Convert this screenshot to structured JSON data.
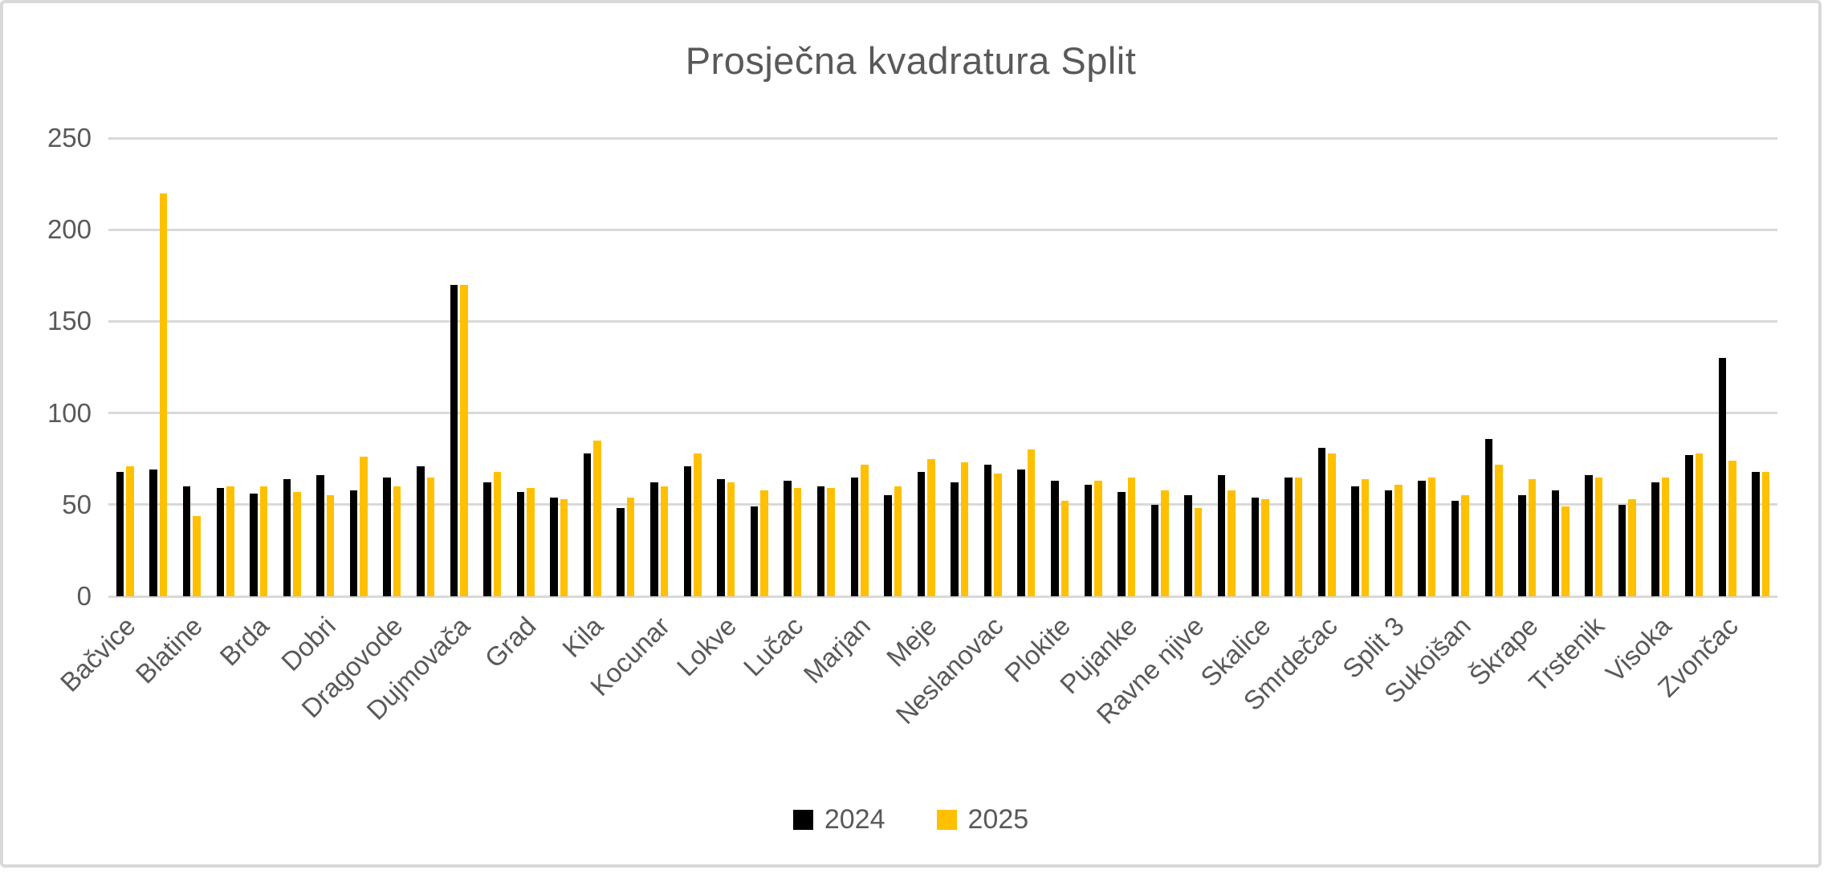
{
  "chart_data": {
    "type": "bar",
    "title": "Prosječna kvadratura Split",
    "xlabel": "",
    "ylabel": "",
    "ylim": [
      0,
      250
    ],
    "y_ticks": [
      0,
      50,
      100,
      150,
      200,
      250
    ],
    "grid": true,
    "legend_position": "bottom",
    "text_color": "#595959",
    "gridline_color": "#d9d9d9",
    "x_tick_labels": [
      "Bačvice",
      "",
      "Blatine",
      "",
      "Brda",
      "",
      "Dobri",
      "",
      "Dragovode",
      "",
      "Dujmovača",
      "",
      "Grad",
      "",
      "Kila",
      "",
      "Kocunar",
      "",
      "Lokve",
      "",
      "Lučac",
      "",
      "Marjan",
      "",
      "Meje",
      "",
      "Neslanovac",
      "",
      "Plokite",
      "",
      "Pujanke",
      "",
      "Ravne njive",
      "",
      "Skalice",
      "",
      "Smrdečac",
      "",
      "Split 3",
      "",
      "Sukoišan",
      "",
      "Škrape",
      "",
      "Trstenik",
      "",
      "Visoka",
      "",
      "Zvončac",
      ""
    ],
    "series": [
      {
        "name": "2024",
        "color": "#000000",
        "values": [
          68,
          69,
          60,
          59,
          56,
          64,
          66,
          58,
          65,
          71,
          170,
          62,
          57,
          54,
          78,
          48,
          62,
          71,
          64,
          49,
          63,
          60,
          65,
          55,
          68,
          62,
          72,
          69,
          63,
          61,
          57,
          50,
          55,
          66,
          54,
          65,
          81,
          60,
          58,
          63,
          52,
          86,
          55,
          58,
          66,
          50,
          62,
          77,
          130,
          68
        ]
      },
      {
        "name": "2025",
        "color": "#FFC000",
        "values": [
          71,
          220,
          44,
          60,
          60,
          57,
          55,
          76,
          60,
          65,
          170,
          68,
          59,
          53,
          85,
          54,
          60,
          78,
          62,
          58,
          59,
          59,
          72,
          60,
          75,
          73,
          67,
          80,
          52,
          63,
          65,
          58,
          48,
          58,
          53,
          65,
          78,
          64,
          61,
          65,
          55,
          72,
          64,
          49,
          65,
          53,
          65,
          78,
          74,
          68
        ]
      }
    ]
  }
}
